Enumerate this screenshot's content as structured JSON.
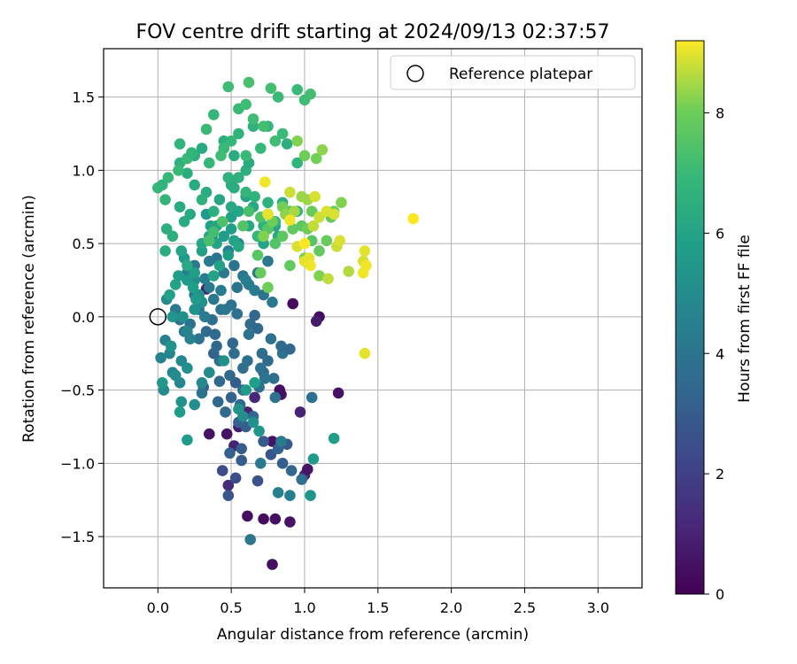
{
  "chart_data": {
    "type": "scatter",
    "title": "FOV centre drift starting at 2024/09/13 02:37:57",
    "xlabel": "Angular distance from reference (arcmin)",
    "ylabel": "Rotation from reference (arcmin)",
    "xlim": [
      -0.37,
      3.3
    ],
    "ylim": [
      -1.85,
      1.83
    ],
    "xticks": [
      "0.0",
      "0.5",
      "1.0",
      "1.5",
      "2.0",
      "2.5",
      "3.0"
    ],
    "xtick_values": [
      0,
      0.5,
      1,
      1.5,
      2,
      2.5,
      3
    ],
    "yticks": [
      "−1.5",
      "−1.0",
      "−0.5",
      "0.0",
      "0.5",
      "1.0",
      "1.5"
    ],
    "ytick_values": [
      -1.5,
      -1.0,
      -0.5,
      0.0,
      0.5,
      1.0,
      1.5
    ],
    "grid": true,
    "legend": {
      "position": "upper right",
      "entries": [
        "Reference platepar"
      ]
    },
    "reference_point": {
      "x": 0.0,
      "y": 0.0
    },
    "colorbar": {
      "label": "Hours from first FF file",
      "colormap": "viridis",
      "range": [
        0,
        9.2
      ],
      "ticks": [
        "0",
        "2",
        "4",
        "6",
        "8"
      ],
      "tick_values": [
        0,
        2,
        4,
        6,
        8
      ]
    },
    "series": [
      {
        "color_by": "hours",
        "x": [
          0.61,
          0.8,
          0.72,
          0.78,
          0.78,
          0.84,
          0.83,
          0.47,
          0.55,
          0.61,
          0.52,
          0.9,
          0.92,
          1.1,
          1.08,
          1.0,
          1.02,
          1.23,
          0.35,
          0.33,
          0.48,
          0.97,
          0.66,
          0.48,
          0.53,
          0.44,
          0.57,
          0.49,
          0.68,
          0.57,
          0.88,
          0.91,
          0.98,
          0.77,
          0.85,
          0.82,
          0.72,
          0.6,
          0.65,
          0.55,
          0.46,
          0.41,
          0.5,
          0.58,
          0.53,
          0.31,
          0.42,
          0.38,
          0.4,
          1.05,
          0.72,
          0.79,
          0.42,
          0.49,
          0.58,
          0.75,
          0.71,
          0.85,
          0.9,
          0.84,
          0.77,
          0.62,
          0.63,
          0.68,
          0.66,
          0.54,
          0.43,
          0.37,
          0.33,
          0.28,
          0.39,
          0.51,
          0.52,
          0.61,
          0.7,
          0.73,
          0.69,
          0.8,
          0.56,
          0.3,
          0.22,
          0.18,
          0.15,
          0.12,
          0.28,
          0.25,
          0.35,
          0.32,
          0.45,
          0.52,
          0.58,
          0.62,
          0.66,
          0.72,
          0.78,
          0.46,
          0.5,
          0.32,
          0.28,
          0.38,
          0.43,
          0.54,
          0.6,
          0.68,
          0.75,
          0.4,
          0.2,
          0.25,
          0.35,
          0.48,
          0.55,
          0.37,
          0.84,
          0.9,
          0.82,
          0.7,
          0.63,
          0.05,
          0.02,
          0.08,
          0.22,
          0.2,
          0.16,
          0.1,
          0.04,
          0.16,
          0.15,
          0.03,
          0.12,
          0.2,
          0.09,
          0.17,
          0.06,
          0.25,
          0.45,
          0.35,
          0.3,
          0.25,
          0.58,
          0.65,
          0.69,
          1.04,
          1.06,
          1.2,
          0.2,
          0.15,
          0.55,
          0.6,
          0.66,
          0.25,
          0.3,
          0.28,
          0.1,
          0.2,
          0.25,
          0.18,
          0.3,
          0.4,
          0.45,
          0.36,
          0.33,
          0.5,
          0.52,
          0.55,
          0.48,
          0.42,
          0.38,
          0.24,
          0.26,
          0.08,
          0.12,
          0.14,
          0.2,
          0.16,
          0.3,
          0.35,
          0.4,
          0.5,
          0.55,
          0.62,
          0.68,
          0.72,
          0.5,
          0.42,
          0.6,
          0.65,
          0.75,
          0.8,
          0.82,
          0.05,
          0.1,
          0.18,
          0.22,
          0.06,
          0.15,
          0.33,
          0.3,
          0.38,
          0.25,
          0.2,
          0.15,
          0.25,
          0.3,
          0.15,
          0.5,
          0.55,
          0.6,
          0.62,
          0.52,
          0.45,
          0.45,
          0.55,
          0.65,
          0.75,
          0.88,
          0.95,
          0.48,
          0.52,
          0.6,
          0.66,
          0.75,
          0.85,
          0.95,
          0.8,
          0.72,
          0.68,
          0.05,
          0.0,
          0.03,
          0.07,
          0.14,
          0.35,
          0.2,
          0.23,
          0.45,
          0.5,
          0.43,
          0.6,
          0.7,
          0.8,
          0.33,
          0.38,
          0.55,
          0.65,
          0.72,
          0.85,
          0.6,
          0.77,
          0.82,
          1.0,
          1.04,
          0.95,
          0.62,
          0.48,
          0.35,
          0.38,
          0.44,
          0.62,
          0.58,
          0.7,
          0.75,
          0.9,
          0.68,
          0.8,
          0.85,
          0.92,
          0.98,
          1.05,
          1.1,
          1.15,
          1.18,
          1.2,
          0.7,
          0.75,
          0.9,
          1.0,
          1.02,
          1.05,
          1.08,
          1.0,
          0.95,
          0.85,
          0.78,
          0.72,
          1.12,
          1.25,
          0.98,
          0.87,
          0.93,
          1.02,
          1.1,
          1.41,
          1.74,
          1.4,
          1.42,
          1.41,
          1.4,
          1.3,
          1.16,
          1.22,
          1.24,
          1.06,
          1.1,
          1.15,
          1.03,
          0.95,
          1.0,
          1.04,
          1.07,
          0.9,
          0.75,
          0.73,
          1.2,
          1.0,
          0.9
        ],
        "y": [
          -1.36,
          -1.38,
          -1.38,
          -1.69,
          -0.85,
          -0.53,
          -0.5,
          -0.8,
          -0.75,
          -0.65,
          -0.88,
          -1.4,
          0.09,
          0.0,
          -0.03,
          -1.08,
          -1.04,
          -0.52,
          -0.8,
          0.19,
          -1.15,
          -0.65,
          -0.55,
          -1.22,
          -1.1,
          -1.05,
          -0.98,
          -0.93,
          -1.12,
          -0.9,
          -0.87,
          -1.05,
          -1.11,
          -0.94,
          -1.0,
          -0.9,
          -0.85,
          -0.75,
          -0.68,
          -0.72,
          -0.65,
          -0.58,
          -0.55,
          -0.5,
          -0.45,
          -0.48,
          -0.3,
          -0.25,
          -0.2,
          -0.55,
          -0.38,
          -0.42,
          -0.44,
          -0.4,
          -0.35,
          -0.3,
          -0.25,
          -0.25,
          -0.22,
          -0.2,
          -0.15,
          -0.12,
          -0.05,
          -0.08,
          0.01,
          0.02,
          0.05,
          -0.02,
          -0.1,
          -0.15,
          -0.12,
          -0.18,
          -0.25,
          -0.3,
          -0.35,
          -0.42,
          -0.48,
          -0.55,
          -0.6,
          -0.52,
          -0.05,
          -0.1,
          -0.02,
          0.05,
          0.1,
          0.15,
          0.2,
          0.26,
          0.3,
          0.35,
          0.28,
          0.22,
          0.18,
          0.15,
          0.1,
          0.05,
          0.08,
          0.0,
          0.05,
          0.12,
          0.18,
          0.2,
          0.25,
          0.3,
          0.38,
          0.4,
          0.3,
          0.35,
          0.38,
          0.45,
          0.5,
          0.55,
          -0.85,
          -1.22,
          -1.2,
          -1.0,
          -1.52,
          -0.16,
          -0.28,
          -0.25,
          -0.15,
          -0.1,
          -0.3,
          -0.38,
          -0.5,
          -0.58,
          -0.45,
          -0.45,
          -0.4,
          -0.35,
          -0.2,
          0.0,
          0.12,
          0.25,
          -0.3,
          -0.38,
          -0.45,
          -0.6,
          -0.68,
          -0.72,
          -0.78,
          -1.22,
          -0.97,
          -0.83,
          -0.84,
          -0.65,
          -0.63,
          -0.5,
          -0.45,
          0.05,
          0.1,
          0.15,
          0.0,
          0.25,
          0.3,
          0.4,
          0.45,
          0.5,
          0.55,
          0.62,
          0.7,
          0.6,
          0.52,
          0.48,
          0.42,
          0.35,
          0.28,
          0.2,
          0.12,
          0.15,
          0.22,
          0.28,
          0.35,
          0.45,
          0.5,
          0.55,
          0.62,
          0.68,
          0.72,
          0.62,
          0.55,
          0.5,
          0.75,
          0.8,
          0.82,
          0.75,
          0.7,
          0.62,
          0.55,
          0.45,
          0.55,
          0.65,
          0.7,
          0.6,
          0.75,
          0.85,
          0.8,
          0.72,
          0.9,
          0.98,
          1.05,
          1.1,
          1.15,
          1.18,
          0.9,
          0.95,
          1.0,
          1.05,
          1.1,
          1.15,
          1.2,
          1.25,
          1.3,
          1.3,
          1.18,
          1.05,
          0.95,
          0.88,
          0.85,
          0.82,
          0.78,
          0.78,
          0.72,
          0.65,
          0.62,
          0.55,
          0.8,
          0.88,
          0.9,
          0.95,
          1.0,
          1.05,
          1.08,
          1.12,
          1.15,
          1.2,
          1.1,
          1.1,
          1.15,
          1.2,
          1.28,
          1.38,
          1.42,
          1.35,
          1.3,
          1.25,
          1.45,
          1.56,
          1.5,
          1.48,
          1.52,
          1.55,
          1.6,
          1.57,
          0.52,
          0.58,
          0.65,
          0.72,
          0.62,
          0.68,
          0.6,
          0.72,
          0.42,
          0.5,
          0.55,
          0.6,
          0.62,
          0.52,
          0.45,
          0.52,
          0.68,
          0.72,
          0.3,
          0.2,
          0.35,
          0.4,
          0.6,
          0.72,
          1.08,
          1.1,
          1.2,
          0.75,
          0.65,
          0.55,
          1.14,
          0.78,
          0.82,
          0.7,
          0.72,
          0.8,
          0.28,
          0.45,
          0.67,
          0.38,
          0.35,
          -0.25,
          0.3,
          0.31,
          0.26,
          0.48,
          0.52,
          0.62,
          0.68,
          0.72,
          0.4,
          0.48,
          0.38,
          0.35,
          0.82,
          0.85,
          0.7,
          0.92,
          0.7,
          0.5,
          0.66
        ],
        "hours": [
          0.4,
          0.4,
          0.3,
          0.4,
          0.5,
          0.5,
          0.4,
          0.5,
          0.8,
          1.0,
          1.0,
          0.5,
          0.3,
          0.4,
          0.8,
          1.2,
          0.6,
          0.5,
          0.5,
          0.8,
          1.3,
          1.0,
          1.2,
          2.8,
          2.5,
          2.4,
          3.0,
          3.2,
          2.6,
          3.0,
          2.9,
          3.4,
          3.7,
          2.8,
          3.1,
          3.2,
          3.0,
          3.1,
          3.4,
          3.2,
          3.6,
          3.5,
          3.3,
          3.4,
          3.0,
          3.2,
          3.7,
          3.3,
          3.5,
          3.8,
          3.6,
          3.7,
          3.5,
          3.6,
          3.8,
          3.6,
          3.7,
          3.9,
          3.4,
          3.6,
          3.8,
          3.9,
          3.6,
          3.5,
          3.4,
          3.8,
          3.9,
          3.7,
          3.6,
          3.9,
          3.6,
          3.5,
          3.7,
          3.8,
          3.9,
          4.0,
          3.8,
          3.9,
          3.6,
          4.0,
          4.0,
          4.1,
          4.0,
          4.2,
          4.0,
          4.1,
          4.2,
          4.3,
          4.2,
          4.0,
          4.1,
          4.2,
          4.3,
          4.0,
          4.1,
          4.2,
          4.0,
          4.3,
          4.2,
          4.1,
          4.3,
          4.0,
          4.4,
          4.2,
          4.1,
          4.0,
          4.3,
          4.1,
          4.2,
          4.4,
          4.3,
          4.0,
          4.3,
          4.4,
          4.5,
          4.2,
          4.1,
          4.5,
          4.6,
          4.8,
          4.6,
          4.7,
          4.9,
          4.6,
          5.0,
          5.2,
          4.8,
          5.5,
          5.0,
          5.1,
          5.3,
          5.2,
          5.0,
          5.1,
          5.2,
          5.0,
          4.9,
          5.1,
          5.0,
          5.2,
          5.4,
          5.4,
          5.6,
          5.8,
          5.6,
          5.7,
          5.3,
          5.6,
          5.8,
          5.2,
          5.1,
          5.3,
          5.4,
          5.5,
          5.8,
          5.6,
          5.9,
          6.0,
          5.7,
          5.9,
          5.6,
          5.8,
          6.0,
          6.1,
          5.7,
          5.9,
          6.0,
          5.8,
          5.6,
          5.9,
          6.0,
          5.8,
          6.2,
          6.0,
          6.1,
          6.2,
          6.0,
          5.9,
          6.1,
          6.2,
          5.8,
          6.0,
          6.2,
          6.1,
          6.0,
          6.2,
          6.1,
          6.0,
          6.3,
          6.4,
          6.5,
          6.3,
          6.2,
          6.5,
          6.3,
          6.4,
          6.6,
          6.5,
          6.3,
          6.4,
          6.6,
          6.5,
          6.3,
          6.7,
          6.4,
          6.6,
          6.5,
          6.3,
          6.4,
          6.6,
          6.5,
          6.7,
          6.6,
          6.8,
          6.5,
          6.7,
          6.6,
          6.4,
          6.8,
          6.7,
          6.6,
          6.5,
          6.7,
          6.8,
          6.6,
          6.9,
          6.8,
          6.9,
          6.7,
          6.9,
          7.0,
          6.9,
          7.0,
          6.8,
          7.0,
          6.9,
          7.1,
          7.0,
          6.9,
          7.1,
          7.0,
          6.9,
          7.0,
          7.1,
          7.2,
          7.0,
          7.1,
          7.2,
          7.0,
          7.1,
          7.2,
          7.0,
          7.3,
          7.1,
          7.3,
          7.2,
          7.4,
          7.3,
          7.5,
          7.4,
          7.6,
          7.5,
          7.6,
          7.5,
          7.7,
          7.8,
          7.7,
          7.6,
          7.8,
          7.9,
          7.8,
          8.0,
          7.9,
          8.0,
          7.8,
          8.1,
          8.0,
          7.9,
          8.1,
          8.0,
          8.2,
          8.1,
          8.0,
          8.2,
          8.3,
          8.2,
          8.4,
          8.3,
          8.5,
          8.4,
          8.2,
          9.0,
          9.2,
          8.9,
          9.1,
          9.0,
          9.1,
          8.6,
          8.7,
          8.8,
          8.9,
          8.7,
          8.8,
          8.9,
          9.0,
          8.9,
          9.0,
          9.1,
          8.9,
          8.8,
          9.0,
          9.1,
          8.9,
          9.2,
          9.1
        ]
      }
    ]
  }
}
